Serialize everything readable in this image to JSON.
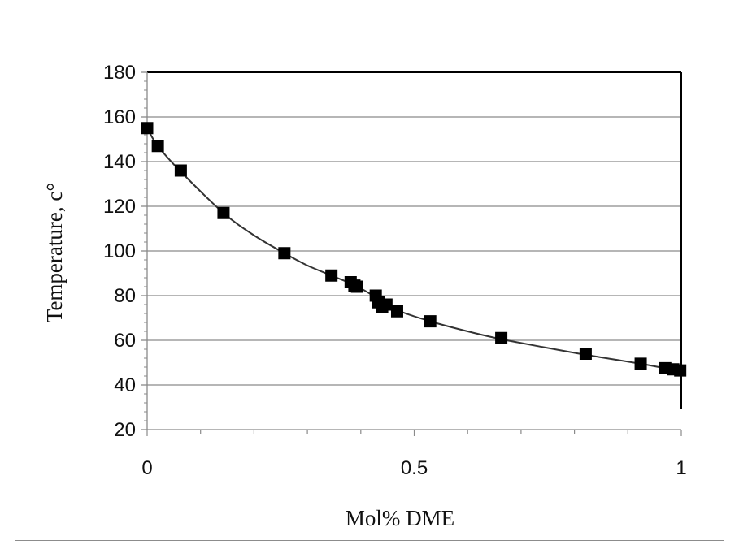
{
  "chart_data": {
    "type": "scatter",
    "title": "",
    "xlabel": "Mol% DME",
    "ylabel": "Temperature, c°",
    "xlim": [
      0,
      1
    ],
    "ylim": [
      20,
      180
    ],
    "x_ticks": [
      0,
      0.5,
      1
    ],
    "x_tick_labels": [
      "0",
      "0.5",
      "1"
    ],
    "y_ticks": [
      20,
      40,
      60,
      80,
      100,
      120,
      140,
      160,
      180
    ],
    "y_tick_labels": [
      "20",
      "40",
      "60",
      "80",
      "100",
      "120",
      "140",
      "160",
      "180"
    ],
    "grid": "horizontal",
    "legend": "none",
    "marker_color": "#000000",
    "line_color": "#333333",
    "series": [
      {
        "points": [
          [
            0.0,
            155
          ],
          [
            0.02,
            147
          ],
          [
            0.063,
            136
          ],
          [
            0.143,
            117
          ],
          [
            0.257,
            99
          ],
          [
            0.345,
            89
          ],
          [
            0.381,
            86
          ],
          [
            0.388,
            84.5
          ],
          [
            0.393,
            84
          ],
          [
            0.428,
            80
          ],
          [
            0.433,
            77
          ],
          [
            0.44,
            75
          ],
          [
            0.448,
            76
          ],
          [
            0.468,
            73
          ],
          [
            0.53,
            68.5
          ],
          [
            0.663,
            61
          ],
          [
            0.821,
            54
          ],
          [
            0.924,
            49.5
          ],
          [
            0.97,
            47.5
          ],
          [
            0.985,
            47
          ],
          [
            0.998,
            46.5
          ]
        ],
        "fit_curve": [
          [
            0.0,
            155
          ],
          [
            0.02,
            147
          ],
          [
            0.063,
            135.5
          ],
          [
            0.143,
            117
          ],
          [
            0.2,
            107
          ],
          [
            0.257,
            99
          ],
          [
            0.3,
            93.5
          ],
          [
            0.345,
            89
          ],
          [
            0.39,
            84.5
          ],
          [
            0.43,
            79
          ],
          [
            0.468,
            73.5
          ],
          [
            0.53,
            68.5
          ],
          [
            0.6,
            64
          ],
          [
            0.663,
            60.5
          ],
          [
            0.74,
            57
          ],
          [
            0.821,
            53.5
          ],
          [
            0.924,
            49.5
          ],
          [
            0.97,
            47.5
          ],
          [
            1.0,
            46.5
          ]
        ]
      }
    ]
  }
}
